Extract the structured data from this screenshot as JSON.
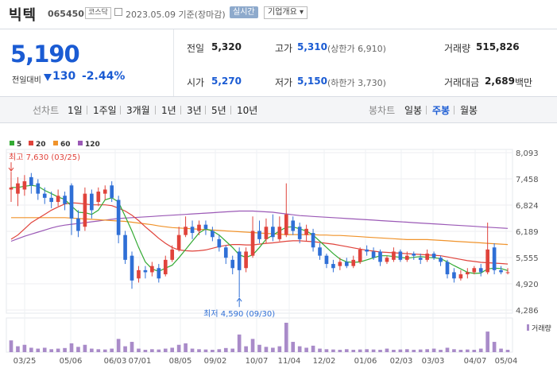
{
  "header": {
    "name": "빅텍",
    "code": "065450",
    "market": "코스닥",
    "date": "2023.05.09 기준(장마감)",
    "realtime": "실시간",
    "corp_info": "기업개요 ▾"
  },
  "quote": {
    "price": "5,190",
    "change_label": "전일대비",
    "change": "130",
    "change_rate": "-2.44%",
    "prev_label": "전일",
    "prev": "5,320",
    "high_label": "고가",
    "high": "5,310",
    "upper_limit": "(상한가 6,910)",
    "volume_label": "거래량",
    "volume": "515,826",
    "open_label": "시가",
    "open": "5,270",
    "low_label": "저가",
    "low": "5,150",
    "lower_limit": "(하한가 3,730)",
    "amount_label": "거래대금",
    "amount": "2,689",
    "amount_unit": "백만"
  },
  "tabs": {
    "line_chart": "선차트",
    "periods": [
      "1일",
      "1주일",
      "3개월",
      "1년",
      "3년",
      "5년",
      "10년"
    ],
    "candle_chart": "봉차트",
    "candle_periods": [
      "일봉",
      "주봉",
      "월봉"
    ],
    "selected_candle": "주봉"
  },
  "chart_data": {
    "type": "candlestick",
    "legend": [
      "5",
      "20",
      "60",
      "120"
    ],
    "colors": {
      "ma5": "#33aa33",
      "ma20": "#e0433b",
      "ma60": "#f0932b",
      "ma120": "#9b59b6",
      "up": "#e0433b",
      "down": "#2f6fd6"
    },
    "y_ticks": [
      "8,093",
      "7,458",
      "6,824",
      "6,189",
      "5,555",
      "4,920",
      "4,286"
    ],
    "y_range": [
      4286,
      8093
    ],
    "x_ticks": [
      "03/25",
      "05/06",
      "06/03",
      "07/01",
      "08/05",
      "09/02",
      "10/07",
      "11/04",
      "12/02",
      "01/06",
      "02/03",
      "03/03",
      "04/07",
      "05/04"
    ],
    "high_note": "최고 7,630 (03/25)",
    "low_note": "최저 4,590 (09/30)",
    "volume_label": "거래량",
    "candles": [
      {
        "o": 7200,
        "c": 7250,
        "h": 7630,
        "l": 6900
      },
      {
        "o": 7100,
        "c": 7350,
        "h": 7500,
        "l": 6800
      },
      {
        "o": 7200,
        "c": 7400,
        "h": 7550,
        "l": 7050
      },
      {
        "o": 7500,
        "c": 7300,
        "h": 7600,
        "l": 7100
      },
      {
        "o": 7350,
        "c": 7100,
        "h": 7450,
        "l": 6950
      },
      {
        "o": 7100,
        "c": 7000,
        "h": 7250,
        "l": 6850
      },
      {
        "o": 7000,
        "c": 6900,
        "h": 7150,
        "l": 6750
      },
      {
        "o": 6900,
        "c": 7050,
        "h": 7200,
        "l": 6800
      },
      {
        "o": 7050,
        "c": 6850,
        "h": 7150,
        "l": 6700
      },
      {
        "o": 7300,
        "c": 6500,
        "h": 7350,
        "l": 6100
      },
      {
        "o": 6500,
        "c": 6200,
        "h": 6700,
        "l": 6050
      },
      {
        "o": 6300,
        "c": 7100,
        "h": 7250,
        "l": 6200
      },
      {
        "o": 7100,
        "c": 6700,
        "h": 7200,
        "l": 6500
      },
      {
        "o": 6900,
        "c": 7150,
        "h": 7250,
        "l": 6800
      },
      {
        "o": 7100,
        "c": 7200,
        "h": 7300,
        "l": 6950
      },
      {
        "o": 7300,
        "c": 7000,
        "h": 7400,
        "l": 6900
      },
      {
        "o": 6950,
        "c": 6100,
        "h": 7050,
        "l": 5900
      },
      {
        "o": 6100,
        "c": 5500,
        "h": 6200,
        "l": 5400
      },
      {
        "o": 5600,
        "c": 5000,
        "h": 5700,
        "l": 4800
      },
      {
        "o": 5050,
        "c": 5250,
        "h": 5350,
        "l": 4950
      },
      {
        "o": 5250,
        "c": 5200,
        "h": 5350,
        "l": 5050
      },
      {
        "o": 5200,
        "c": 5350,
        "h": 5450,
        "l": 5100
      },
      {
        "o": 5300,
        "c": 5050,
        "h": 5400,
        "l": 4950
      },
      {
        "o": 5150,
        "c": 5500,
        "h": 5600,
        "l": 5100
      },
      {
        "o": 5500,
        "c": 5750,
        "h": 5850,
        "l": 5450
      },
      {
        "o": 5750,
        "c": 6100,
        "h": 6300,
        "l": 5700
      },
      {
        "o": 6100,
        "c": 6300,
        "h": 6550,
        "l": 6050
      },
      {
        "o": 6300,
        "c": 6150,
        "h": 6450,
        "l": 6000
      },
      {
        "o": 6200,
        "c": 6350,
        "h": 6450,
        "l": 6100
      },
      {
        "o": 6350,
        "c": 6250,
        "h": 6450,
        "l": 6100
      },
      {
        "o": 6200,
        "c": 6050,
        "h": 6300,
        "l": 5950
      },
      {
        "o": 6000,
        "c": 5800,
        "h": 6100,
        "l": 5700
      },
      {
        "o": 5800,
        "c": 5550,
        "h": 5850,
        "l": 5400
      },
      {
        "o": 5500,
        "c": 5300,
        "h": 5600,
        "l": 5150
      },
      {
        "o": 5700,
        "c": 5250,
        "h": 5800,
        "l": 4590
      },
      {
        "o": 5300,
        "c": 5700,
        "h": 5800,
        "l": 5200
      },
      {
        "o": 5600,
        "c": 6200,
        "h": 6550,
        "l": 5550
      },
      {
        "o": 6200,
        "c": 6000,
        "h": 6450,
        "l": 5900
      },
      {
        "o": 6000,
        "c": 6300,
        "h": 6500,
        "l": 5900
      },
      {
        "o": 6300,
        "c": 6050,
        "h": 6600,
        "l": 5950
      },
      {
        "o": 6000,
        "c": 6300,
        "h": 6550,
        "l": 5950
      },
      {
        "o": 6100,
        "c": 6600,
        "h": 7350,
        "l": 6050
      },
      {
        "o": 6450,
        "c": 6200,
        "h": 6550,
        "l": 6100
      },
      {
        "o": 6300,
        "c": 6000,
        "h": 6400,
        "l": 5900
      },
      {
        "o": 6100,
        "c": 6250,
        "h": 6350,
        "l": 5950
      },
      {
        "o": 6150,
        "c": 5800,
        "h": 6250,
        "l": 5700
      },
      {
        "o": 5800,
        "c": 5600,
        "h": 5900,
        "l": 5500
      },
      {
        "o": 5600,
        "c": 5400,
        "h": 5650,
        "l": 5300
      },
      {
        "o": 5400,
        "c": 5300,
        "h": 5500,
        "l": 5200
      },
      {
        "o": 5350,
        "c": 5450,
        "h": 5550,
        "l": 5250
      },
      {
        "o": 5450,
        "c": 5350,
        "h": 5550,
        "l": 5300
      },
      {
        "o": 5350,
        "c": 5500,
        "h": 5600,
        "l": 5300
      },
      {
        "o": 5450,
        "c": 5750,
        "h": 5800,
        "l": 5400
      },
      {
        "o": 5750,
        "c": 5700,
        "h": 5850,
        "l": 5600
      },
      {
        "o": 5700,
        "c": 5550,
        "h": 5800,
        "l": 5500
      },
      {
        "o": 5700,
        "c": 5450,
        "h": 5750,
        "l": 5350
      },
      {
        "o": 5450,
        "c": 5550,
        "h": 5600,
        "l": 5400
      },
      {
        "o": 5500,
        "c": 5700,
        "h": 5800,
        "l": 5450
      },
      {
        "o": 5700,
        "c": 5500,
        "h": 5750,
        "l": 5450
      },
      {
        "o": 5500,
        "c": 5600,
        "h": 5700,
        "l": 5450
      },
      {
        "o": 5650,
        "c": 5600,
        "h": 5700,
        "l": 5500
      },
      {
        "o": 5550,
        "c": 5500,
        "h": 5650,
        "l": 5400
      },
      {
        "o": 5500,
        "c": 5650,
        "h": 5750,
        "l": 5450
      },
      {
        "o": 5650,
        "c": 5550,
        "h": 5700,
        "l": 5500
      },
      {
        "o": 5550,
        "c": 5450,
        "h": 5600,
        "l": 5350
      },
      {
        "o": 5450,
        "c": 5150,
        "h": 5500,
        "l": 5050
      },
      {
        "o": 5200,
        "c": 5050,
        "h": 5300,
        "l": 4950
      },
      {
        "o": 5050,
        "c": 5150,
        "h": 5250,
        "l": 5000
      },
      {
        "o": 5150,
        "c": 5200,
        "h": 5300,
        "l": 5050
      },
      {
        "o": 5200,
        "c": 5300,
        "h": 5350,
        "l": 5150
      },
      {
        "o": 5300,
        "c": 5200,
        "h": 5400,
        "l": 5100
      },
      {
        "o": 5200,
        "c": 5750,
        "h": 6400,
        "l": 5150
      },
      {
        "o": 5800,
        "c": 5250,
        "h": 5900,
        "l": 5150
      },
      {
        "o": 5250,
        "c": 5200,
        "h": 5350,
        "l": 5150
      },
      {
        "o": 5200,
        "c": 5200,
        "h": 5300,
        "l": 5150
      }
    ],
    "volumes": [
      40,
      20,
      25,
      15,
      12,
      15,
      10,
      12,
      14,
      30,
      18,
      25,
      12,
      10,
      9,
      12,
      45,
      20,
      35,
      12,
      8,
      10,
      9,
      12,
      15,
      25,
      30,
      12,
      10,
      9,
      8,
      10,
      14,
      12,
      60,
      20,
      45,
      25,
      18,
      15,
      20,
      100,
      35,
      20,
      15,
      22,
      12,
      10,
      9,
      8,
      10,
      8,
      9,
      10,
      9,
      8,
      12,
      8,
      9,
      10,
      8,
      9,
      10,
      12,
      8,
      15,
      10,
      8,
      9,
      8,
      12,
      70,
      35,
      12,
      8
    ],
    "ma5": [
      7250,
      7250,
      7280,
      7300,
      7280,
      7180,
      7100,
      7020,
      6960,
      6800,
      6650,
      6640,
      6600,
      6700,
      6950,
      7000,
      6900,
      6550,
      6200,
      5800,
      5450,
      5280,
      5220,
      5300,
      5370,
      5550,
      5750,
      5950,
      6150,
      6250,
      6200,
      6100,
      5950,
      5800,
      5620,
      5560,
      5620,
      5800,
      6000,
      6100,
      6200,
      6290,
      6300,
      6250,
      6200,
      6100,
      5950,
      5800,
      5650,
      5520,
      5450,
      5440,
      5450,
      5500,
      5550,
      5600,
      5600,
      5580,
      5560,
      5540,
      5560,
      5580,
      5560,
      5550,
      5530,
      5450,
      5360,
      5280,
      5200,
      5170,
      5180,
      5280,
      5300,
      5290,
      5240
    ],
    "ma20": [
      6000,
      6100,
      6250,
      6400,
      6500,
      6600,
      6700,
      6780,
      6850,
      6880,
      6870,
      6850,
      6830,
      6830,
      6830,
      6810,
      6750,
      6680,
      6580,
      6450,
      6300,
      6160,
      6020,
      5900,
      5800,
      5740,
      5720,
      5710,
      5720,
      5740,
      5780,
      5820,
      5850,
      5870,
      5870,
      5860,
      5860,
      5880,
      5900,
      5910,
      5930,
      5950,
      5960,
      5960,
      5950,
      5940,
      5920,
      5900,
      5880,
      5850,
      5820,
      5790,
      5760,
      5730,
      5710,
      5690,
      5680,
      5670,
      5660,
      5650,
      5640,
      5630,
      5620,
      5610,
      5600,
      5570,
      5540,
      5510,
      5480,
      5460,
      5440,
      5430,
      5420,
      5410,
      5400
    ],
    "ma60": [
      6520,
      6520,
      6520,
      6520,
      6520,
      6520,
      6520,
      6520,
      6520,
      6510,
      6500,
      6490,
      6480,
      6470,
      6460,
      6450,
      6440,
      6430,
      6410,
      6390,
      6370,
      6350,
      6320,
      6300,
      6280,
      6270,
      6260,
      6250,
      6240,
      6230,
      6220,
      6210,
      6200,
      6190,
      6180,
      6170,
      6160,
      6150,
      6140,
      6130,
      6120,
      6110,
      6110,
      6110,
      6110,
      6110,
      6100,
      6100,
      6090,
      6090,
      6080,
      6070,
      6060,
      6050,
      6040,
      6030,
      6020,
      6010,
      6000,
      5990,
      5990,
      5990,
      5990,
      5980,
      5970,
      5960,
      5950,
      5940,
      5930,
      5920,
      5910,
      5900,
      5890,
      5880,
      5870
    ],
    "ma120": [
      5950,
      6010,
      6070,
      6120,
      6170,
      6220,
      6270,
      6310,
      6340,
      6360,
      6380,
      6400,
      6420,
      6440,
      6460,
      6480,
      6500,
      6510,
      6520,
      6530,
      6540,
      6550,
      6560,
      6570,
      6580,
      6590,
      6600,
      6610,
      6620,
      6630,
      6640,
      6650,
      6660,
      6670,
      6680,
      6680,
      6680,
      6670,
      6660,
      6650,
      6630,
      6610,
      6590,
      6570,
      6560,
      6550,
      6540,
      6530,
      6520,
      6510,
      6500,
      6490,
      6480,
      6470,
      6460,
      6450,
      6440,
      6430,
      6420,
      6410,
      6400,
      6390,
      6380,
      6370,
      6360,
      6350,
      6340,
      6330,
      6320,
      6310,
      6300,
      6290,
      6280,
      6270,
      6260
    ]
  }
}
